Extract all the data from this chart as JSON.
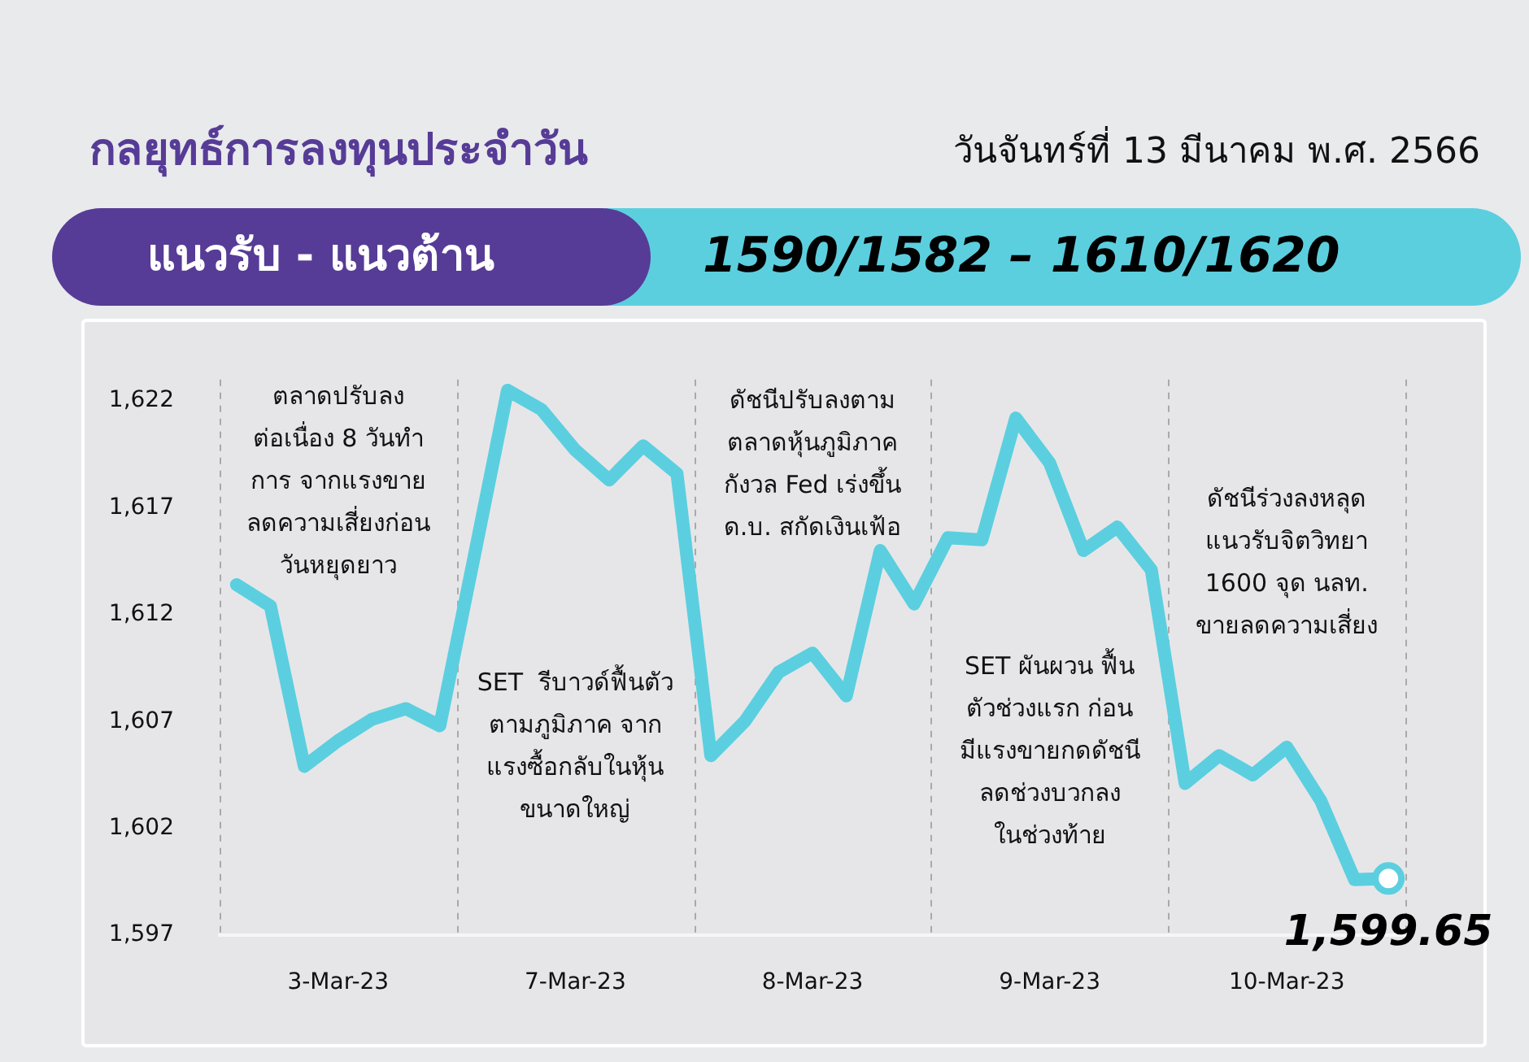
{
  "chart_data": {
    "type": "line",
    "title": "กลยุทธ์การลงทุนประจำวัน",
    "subtitle": "วันจันทร์ที่ 13 มีนาคม พ.ศ. 2566",
    "categories": [
      null,
      null,
      null,
      "3-Mar-23",
      null,
      null,
      null,
      null,
      null,
      null,
      "7-Mar-23",
      null,
      null,
      null,
      null,
      null,
      null,
      "8-Mar-23",
      null,
      null,
      null,
      null,
      null,
      null,
      "9-Mar-23",
      null,
      null,
      null,
      null,
      null,
      null,
      "10-Mar-23",
      null,
      null,
      null
    ],
    "series": [
      {
        "color": "#5bcfdf",
        "values": [
          1613.4,
          1612.4,
          1604.9,
          1606.1,
          1607.1,
          1607.6,
          1606.8,
          1614.6,
          1622.5,
          1621.6,
          1619.7,
          1618.3,
          1619.9,
          1618.6,
          1605.4,
          1607.0,
          1609.3,
          1610.2,
          1608.2,
          1615.0,
          1612.5,
          1615.6,
          1615.5,
          1621.2,
          1619.1,
          1615.0,
          1616.1,
          1614.1,
          1604.1,
          1605.4,
          1604.5,
          1605.8,
          1603.3,
          1599.6,
          1599.65
        ]
      },
      {
        "type": "scatter",
        "marker": "circle",
        "color": "#5bcfdf",
        "values": [
          null,
          null,
          null,
          null,
          null,
          null,
          null,
          null,
          null,
          null,
          null,
          null,
          null,
          null,
          null,
          null,
          null,
          null,
          null,
          null,
          null,
          null,
          null,
          null,
          null,
          null,
          null,
          null,
          null,
          null,
          null,
          null,
          null,
          null,
          1599.65
        ],
        "value_labels": [
          null,
          null,
          null,
          null,
          null,
          null,
          null,
          null,
          null,
          null,
          null,
          null,
          null,
          null,
          null,
          null,
          null,
          null,
          null,
          null,
          null,
          null,
          null,
          null,
          null,
          null,
          null,
          null,
          null,
          null,
          null,
          null,
          null,
          null,
          "1,599.65"
        ]
      }
    ],
    "grid": "x",
    "ylim": [
      1597,
      1623
    ],
    "yticks": [
      {
        "value": 1597,
        "label": "1,597"
      },
      {
        "value": 1602,
        "label": "1,602"
      },
      {
        "value": 1607,
        "label": "1,607"
      },
      {
        "value": 1612,
        "label": "1,612"
      },
      {
        "value": 1617,
        "label": "1,617"
      },
      {
        "value": 1622,
        "label": "1,622"
      }
    ],
    "annotations": [
      "แนวรับ - แนวต้าน",
      "1590/1582 – 1610/1620",
      "ตลาดปรับลง\nต่อเนื่อง 8 วันทำ\nการ จากแรงขาย\nลดความเสี่ยงก่อน\nวันหยุดยาว",
      "SET  รีบาวด์ฟื้นตัว\nตามภูมิภาค จาก\nแรงซื้อกลับในหุ้น\nขนาดใหญ่",
      "ดัชนีปรับลงตาม\nตลาดหุ้นภูมิภาค\nกังวล Fed เร่งขึ้น\nด.บ. สกัดเงินเฟ้อ",
      "SET ผันผวน ฟื้น\nตัวช่วงแรก ก่อน\nมีแรงขายกดดัชนี\nลดช่วงบวกลง\nในช่วงท้าย",
      "ดัชนีร่วงลงหลุด\nแนวรับจิตวิทยา\n1600 จุด นลท.\nขายลดความเสี่ยง"
    ]
  }
}
